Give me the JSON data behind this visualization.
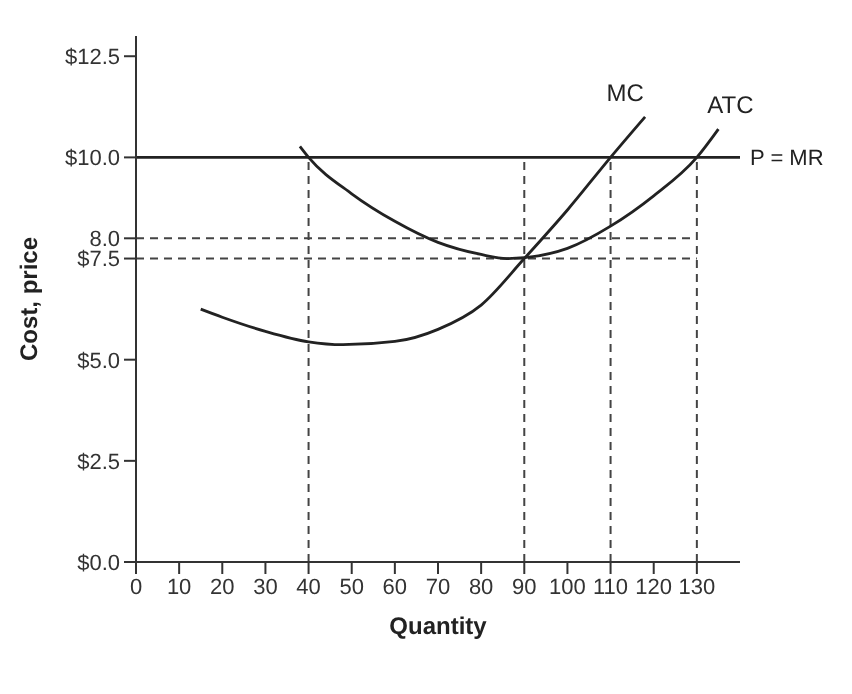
{
  "chart_data": {
    "type": "line",
    "xlabel": "Quantity",
    "ylabel": "Cost, price",
    "xlim": [
      0,
      140
    ],
    "xticks": [
      0,
      10,
      20,
      30,
      40,
      50,
      60,
      70,
      80,
      90,
      100,
      110,
      120,
      130
    ],
    "ylim": [
      0,
      13
    ],
    "yticks": [
      {
        "value": 0,
        "label": "$0.0"
      },
      {
        "value": 2.5,
        "label": "$2.5"
      },
      {
        "value": 5,
        "label": "$5.0"
      },
      {
        "value": 7.5,
        "label": "$7.5"
      },
      {
        "value": 8,
        "label": "8.0"
      },
      {
        "value": 10,
        "label": "$10.0"
      },
      {
        "value": 12.5,
        "label": "$12.5"
      }
    ],
    "grid": false,
    "legend": false,
    "marker": "none",
    "line_style": "solid",
    "series": [
      {
        "name": "MC",
        "color": "#222222",
        "x": [
          15,
          20,
          30,
          40,
          48,
          60,
          70,
          80,
          90,
          100,
          110,
          118
        ],
        "values": [
          6.25,
          6.05,
          5.7,
          5.44,
          5.37,
          5.45,
          5.75,
          6.35,
          7.5,
          8.7,
          10,
          11
        ]
      },
      {
        "name": "ATC",
        "color": "#222222",
        "x": [
          38,
          40,
          50,
          60,
          70,
          80,
          86,
          90,
          100,
          110,
          120,
          130,
          135
        ],
        "values": [
          10.27,
          10,
          9.1,
          8.42,
          7.9,
          7.6,
          7.5,
          7.52,
          7.75,
          8.3,
          9.05,
          10,
          10.7
        ]
      }
    ],
    "ref_lines": [
      {
        "axis": "y",
        "value": 10,
        "label": "P = MR",
        "line_style": "solid",
        "color": "#222222"
      },
      {
        "axis": "y",
        "value": 8,
        "line_style": "dashed",
        "color": "#444444"
      },
      {
        "axis": "y",
        "value": 7.5,
        "line_style": "dashed",
        "color": "#444444"
      },
      {
        "axis": "x",
        "value": 40,
        "line_style": "dashed",
        "color": "#444444"
      },
      {
        "axis": "x",
        "value": 90,
        "line_style": "dashed",
        "color": "#444444"
      },
      {
        "axis": "x",
        "value": 110,
        "line_style": "dashed",
        "color": "#444444"
      },
      {
        "axis": "x",
        "value": 130,
        "line_style": "dashed",
        "color": "#444444"
      }
    ]
  }
}
